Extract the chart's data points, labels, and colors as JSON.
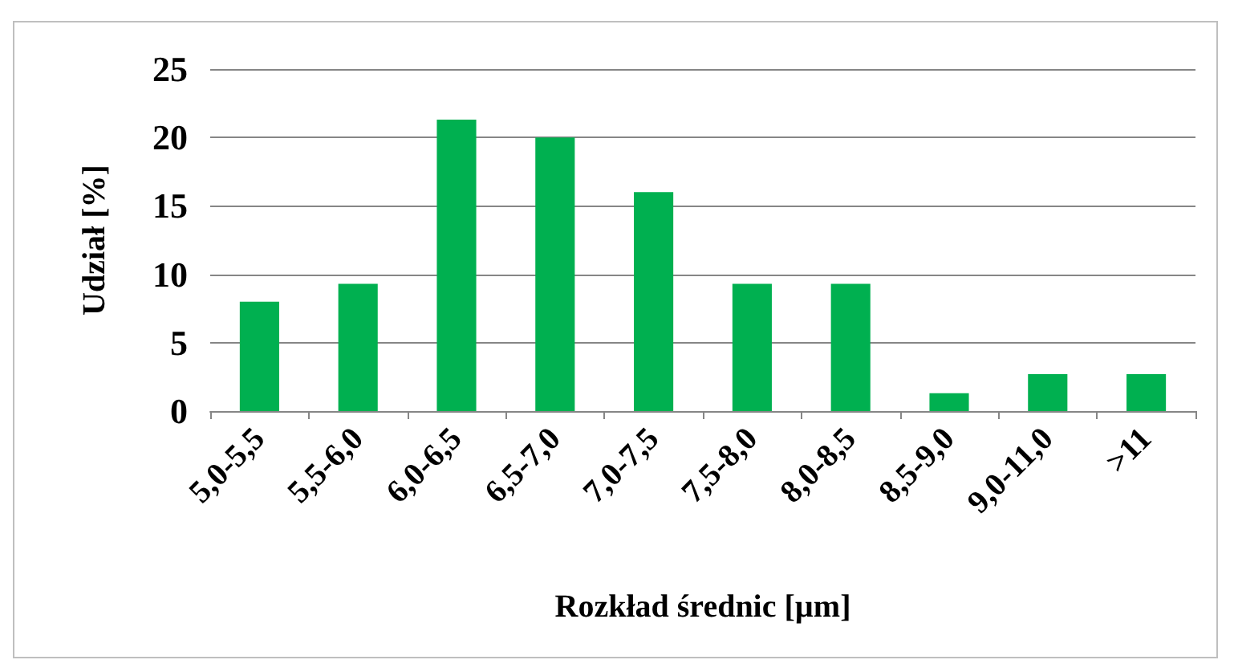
{
  "chart_data": {
    "type": "bar",
    "xlabel": "Rozkład średnic [µm]",
    "ylabel": "Udział [%]",
    "categories": [
      "5,0-5,5",
      "5,5-6,0",
      "6,0-6,5",
      "6,5-7,0",
      "7,0-7,5",
      "7,5-8,0",
      "8,0-8,5",
      "8,5-9,0",
      "9,0-11,0",
      ">11"
    ],
    "values": [
      8,
      9.3,
      21.3,
      20,
      16,
      9.3,
      9.3,
      1.3,
      2.7,
      2.7
    ],
    "color": "#00b050",
    "ylim": [
      0,
      25
    ],
    "yticks": [
      0,
      5,
      10,
      15,
      20,
      25
    ],
    "grid": "y"
  }
}
